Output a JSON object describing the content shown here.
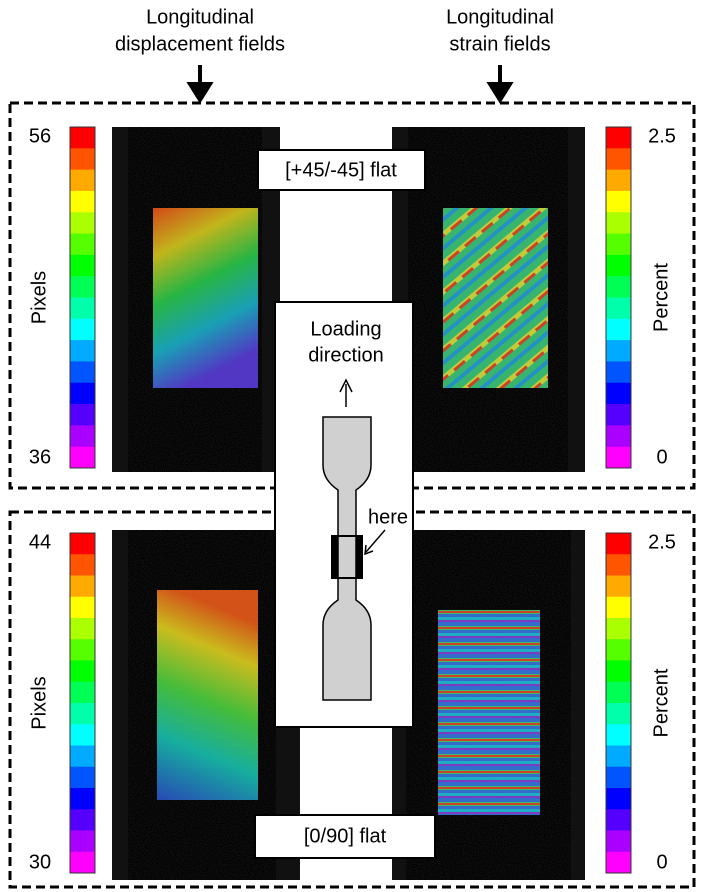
{
  "headers": {
    "left": [
      "Longitudinal",
      "displacement fields"
    ],
    "right": [
      "Longitudinal",
      "strain fields"
    ]
  },
  "panels": [
    {
      "label": "[+45/-45] flat",
      "left_colorbar": {
        "max": 56,
        "min": 36,
        "label": "Pixels"
      },
      "right_colorbar": {
        "max": 2.5,
        "min": 0,
        "label": "Percent"
      }
    },
    {
      "label": "[0/90] flat",
      "left_colorbar": {
        "max": 44,
        "min": 30,
        "label": "Pixels"
      },
      "right_colorbar": {
        "max": 2.5,
        "min": 0,
        "label": "Percent"
      }
    }
  ],
  "inset": {
    "title": [
      "Loading",
      "direction"
    ],
    "pointer": "here"
  }
}
